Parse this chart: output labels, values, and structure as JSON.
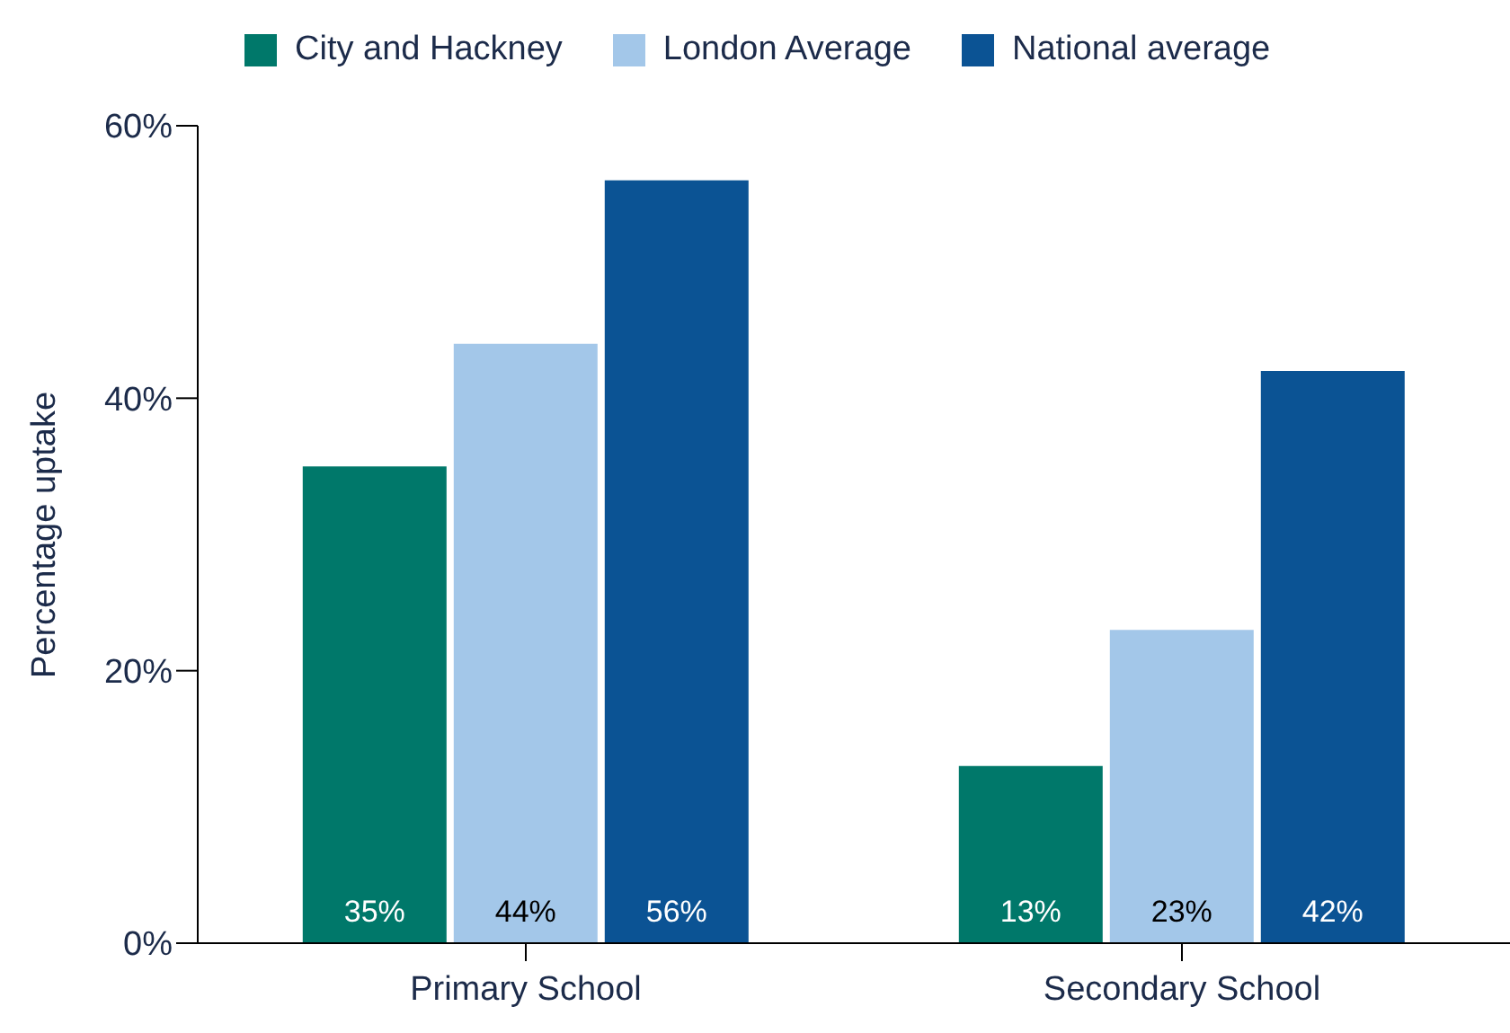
{
  "chart_data": {
    "type": "bar",
    "categories": [
      "Primary School",
      "Secondary School"
    ],
    "ylabel": "Percentage uptake",
    "ylim": [
      0,
      60
    ],
    "yticks": [
      {
        "value": 0,
        "label": "0%"
      },
      {
        "value": 20,
        "label": "20%"
      },
      {
        "value": 40,
        "label": "40%"
      },
      {
        "value": 60,
        "label": "60%"
      }
    ],
    "legend": "top",
    "series": [
      {
        "name": "City and Hackney",
        "color": "#00786a",
        "values": [
          35,
          13
        ],
        "value_labels": [
          "35%",
          "13%"
        ]
      },
      {
        "name": "London Average",
        "color": "#a3c7e9",
        "values": [
          44,
          23
        ],
        "value_labels": [
          "44%",
          "23%"
        ]
      },
      {
        "name": "National average",
        "color": "#0b5394",
        "values": [
          56,
          42
        ],
        "value_labels": [
          "56%",
          "42%"
        ]
      }
    ]
  }
}
